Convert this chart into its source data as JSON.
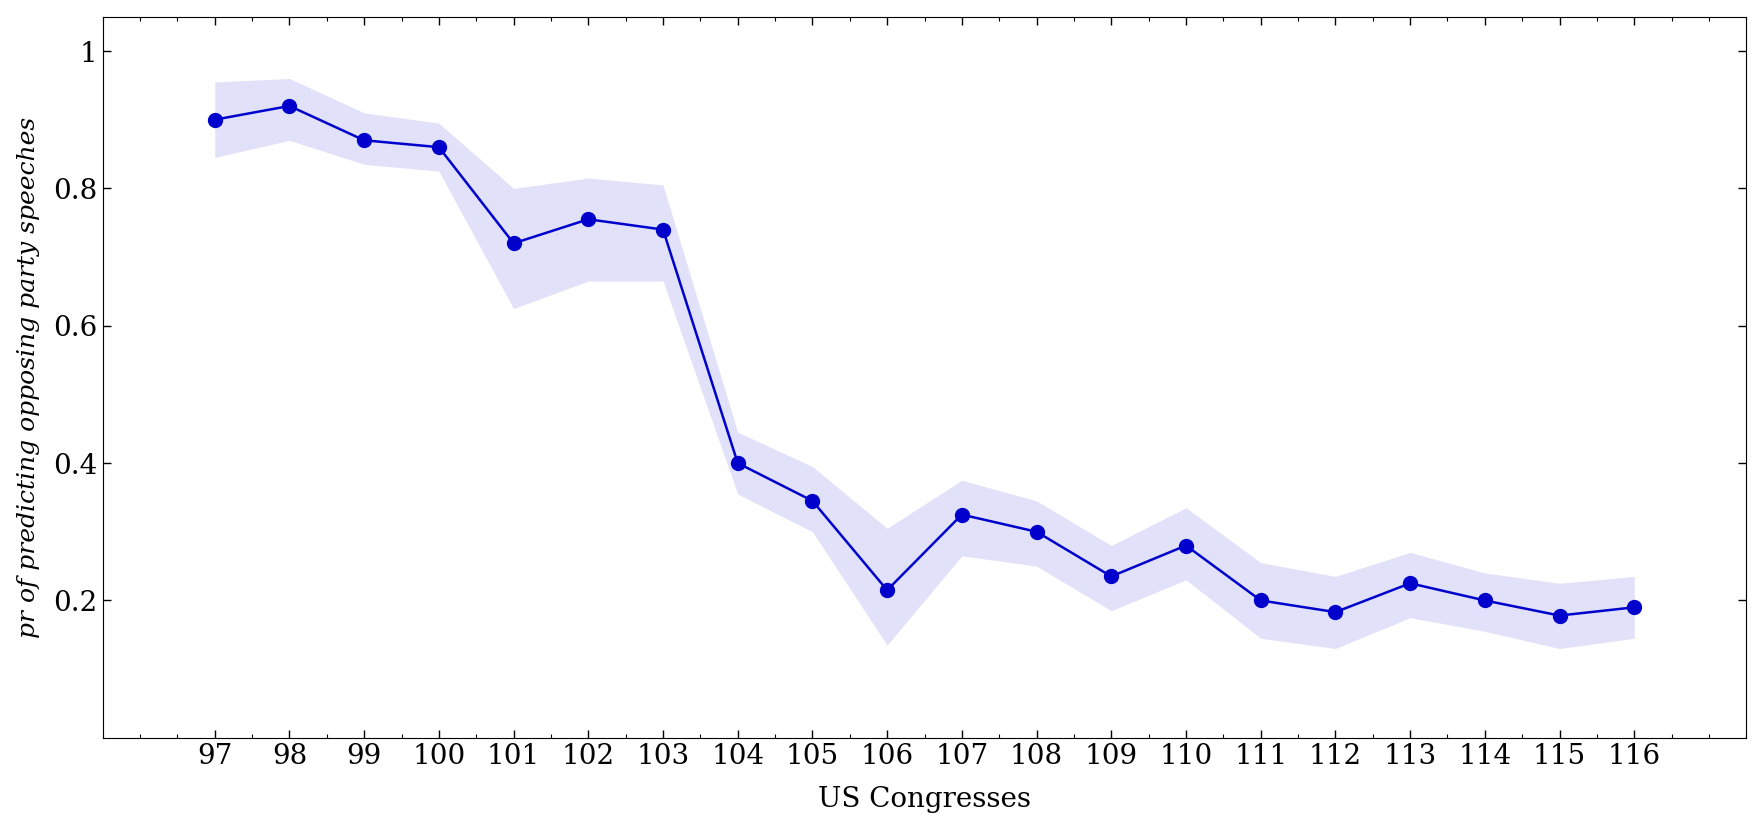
{
  "congresses": [
    97,
    98,
    99,
    100,
    101,
    102,
    103,
    104,
    105,
    106,
    107,
    108,
    109,
    110,
    111,
    112,
    113,
    114,
    115,
    116
  ],
  "y_values": [
    0.9,
    0.92,
    0.87,
    0.86,
    0.72,
    0.755,
    0.74,
    0.4,
    0.345,
    0.215,
    0.325,
    0.3,
    0.235,
    0.28,
    0.2,
    0.183,
    0.225,
    0.2,
    0.178,
    0.19
  ],
  "y_upper": [
    0.955,
    0.96,
    0.91,
    0.895,
    0.8,
    0.815,
    0.805,
    0.445,
    0.395,
    0.305,
    0.375,
    0.345,
    0.28,
    0.335,
    0.255,
    0.235,
    0.27,
    0.24,
    0.225,
    0.235
  ],
  "y_lower": [
    0.845,
    0.87,
    0.835,
    0.825,
    0.625,
    0.665,
    0.665,
    0.355,
    0.3,
    0.135,
    0.265,
    0.25,
    0.185,
    0.23,
    0.145,
    0.13,
    0.175,
    0.155,
    0.13,
    0.145
  ],
  "line_color": "#0000cc",
  "fill_color": "#aaaaee",
  "xlabel": "US Congresses",
  "ylabel": "pr of predicting opposing party speeches",
  "ylim": [
    0.0,
    1.05
  ],
  "yticks": [
    0.2,
    0.4,
    0.6,
    0.8,
    1.0
  ],
  "marker": "o",
  "markersize": 10,
  "linewidth": 1.8,
  "fill_alpha": 0.35,
  "xlabel_fontsize": 20,
  "ylabel_fontsize": 18,
  "tick_fontsize": 20,
  "title_fontsize": 14
}
